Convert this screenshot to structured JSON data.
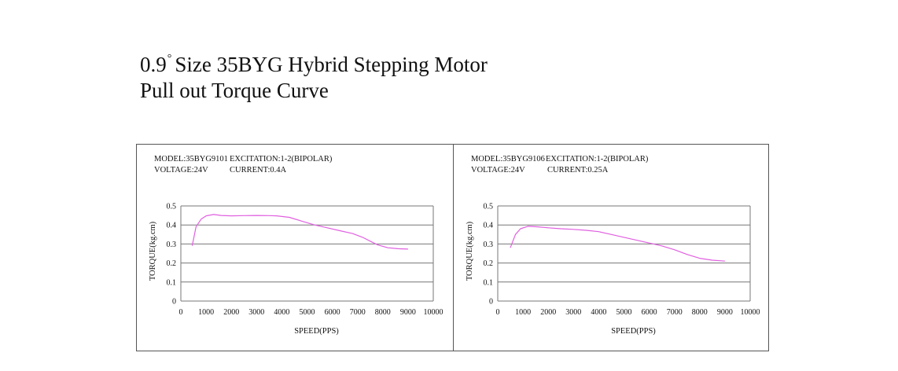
{
  "header": {
    "title_number": "0.9",
    "title_degree": "°",
    "title_rest": "Size 35BYG Hybrid Stepping Motor",
    "subtitle": "Pull out Torque Curve"
  },
  "colors": {
    "curve": "#e060e0",
    "grid": "#777777",
    "frame": "#555555"
  },
  "chart_data": [
    {
      "type": "line",
      "info": {
        "model": "MODEL:35BYG9101",
        "excitation": "EXCITATION:1-2(BIPOLAR)",
        "voltage": "VOLTAGE:24V",
        "current": "CURRENT:0.4A"
      },
      "xlabel": "SPEED(PPS)",
      "ylabel": "TORQUE(kg.cm)",
      "xlim": [
        0,
        10000
      ],
      "ylim": [
        0,
        0.5
      ],
      "xticks": [
        "0",
        "1000",
        "2000",
        "3000",
        "4000",
        "5000",
        "6000",
        "7000",
        "8000",
        "9000",
        "10000"
      ],
      "yticks": [
        "0",
        "0.1",
        "0.2",
        "0.3",
        "0.4",
        "0.5"
      ],
      "grid": "horizontal",
      "series": [
        {
          "x": [
            450,
            600,
            800,
            1000,
            1300,
            1600,
            2000,
            2500,
            3000,
            3500,
            3800,
            4300,
            4800,
            5300,
            5800,
            6300,
            6800,
            7200,
            7500,
            7800,
            8200,
            8600,
            9000
          ],
          "y": [
            0.29,
            0.39,
            0.43,
            0.448,
            0.455,
            0.45,
            0.448,
            0.449,
            0.45,
            0.449,
            0.448,
            0.44,
            0.42,
            0.4,
            0.385,
            0.37,
            0.355,
            0.335,
            0.315,
            0.295,
            0.28,
            0.275,
            0.273
          ]
        }
      ]
    },
    {
      "type": "line",
      "info": {
        "model": "MODEL:35BYG9106",
        "excitation": "EXCITATION:1-2(BIPOLAR)",
        "voltage": "VOLTAGE:24V",
        "current": "CURRENT:0.25A"
      },
      "xlabel": "SPEED(PPS)",
      "ylabel": "TORQUE(kg.cm)",
      "xlim": [
        0,
        10000
      ],
      "ylim": [
        0,
        0.5
      ],
      "xticks": [
        "0",
        "1000",
        "2000",
        "3000",
        "4000",
        "5000",
        "6000",
        "7000",
        "8000",
        "9000",
        "10000"
      ],
      "yticks": [
        "0",
        "0.1",
        "0.2",
        "0.3",
        "0.4",
        "0.5"
      ],
      "grid": "horizontal",
      "series": [
        {
          "x": [
            500,
            700,
            900,
            1200,
            1600,
            2000,
            2500,
            3000,
            3500,
            4000,
            4500,
            5000,
            5500,
            6000,
            6500,
            7000,
            7500,
            8000,
            8500,
            9000
          ],
          "y": [
            0.28,
            0.35,
            0.38,
            0.393,
            0.39,
            0.385,
            0.38,
            0.377,
            0.372,
            0.365,
            0.35,
            0.335,
            0.32,
            0.305,
            0.29,
            0.27,
            0.245,
            0.225,
            0.215,
            0.21
          ]
        }
      ]
    }
  ]
}
